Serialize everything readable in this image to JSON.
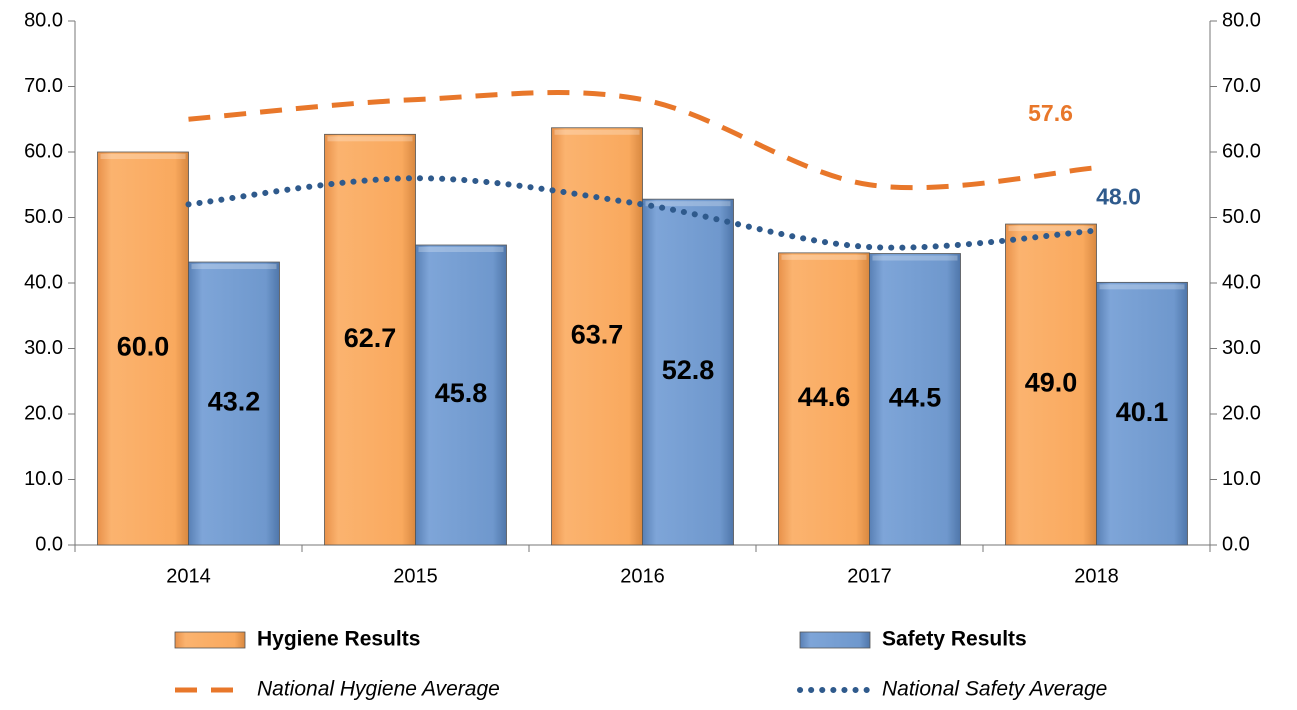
{
  "chart_data": {
    "type": "bar",
    "categories": [
      "2014",
      "2015",
      "2016",
      "2017",
      "2018"
    ],
    "series": [
      {
        "name": "Hygiene Results",
        "type": "bar",
        "color": "#f9a95e",
        "values": [
          60,
          62.7,
          63.7,
          44.6,
          49
        ],
        "value_labels": [
          "60.0",
          "62.7",
          "63.7",
          "44.6",
          "49.0"
        ]
      },
      {
        "name": "Safety Results",
        "type": "bar",
        "color": "#6f98cd",
        "values": [
          43.2,
          45.8,
          52.8,
          44.5,
          40.1
        ],
        "value_labels": [
          "43.2",
          "45.8",
          "52.8",
          "44.5",
          "40.1"
        ]
      },
      {
        "name": "National Hygiene Average",
        "type": "line",
        "style": "dashed",
        "axis": "y2",
        "color": "#e8772a",
        "values": [
          65,
          68,
          68,
          55,
          57.6
        ],
        "value_labels": [
          null,
          null,
          null,
          null,
          "57.6"
        ]
      },
      {
        "name": "National Safety Average",
        "type": "line",
        "style": "dotted",
        "axis": "y2",
        "color": "#2f5a8c",
        "values": [
          52,
          56,
          52,
          45.5,
          48
        ],
        "value_labels": [
          null,
          null,
          null,
          null,
          "48.0"
        ]
      }
    ],
    "ylim": [
      0,
      80
    ],
    "yticks": [
      {
        "value": 0,
        "label": "0.0"
      },
      {
        "value": 10,
        "label": "10.0"
      },
      {
        "value": 20,
        "label": "20.0"
      },
      {
        "value": 30,
        "label": "30.0"
      },
      {
        "value": 40,
        "label": "40.0"
      },
      {
        "value": 50,
        "label": "50.0"
      },
      {
        "value": 60,
        "label": "60.0"
      },
      {
        "value": 70,
        "label": "70.0"
      },
      {
        "value": 80,
        "label": "80.0"
      }
    ],
    "y2lim": [
      0,
      80
    ],
    "y2ticks": [
      {
        "value": 0,
        "label": "0.0"
      },
      {
        "value": 10,
        "label": "10.0"
      },
      {
        "value": 20,
        "label": "20.0"
      },
      {
        "value": 30,
        "label": "30.0"
      },
      {
        "value": 40,
        "label": "40.0"
      },
      {
        "value": 50,
        "label": "50.0"
      },
      {
        "value": 60,
        "label": "60.0"
      },
      {
        "value": 70,
        "label": "70.0"
      },
      {
        "value": 80,
        "label": "80.0"
      }
    ],
    "grid": false,
    "legend": "bottom"
  }
}
